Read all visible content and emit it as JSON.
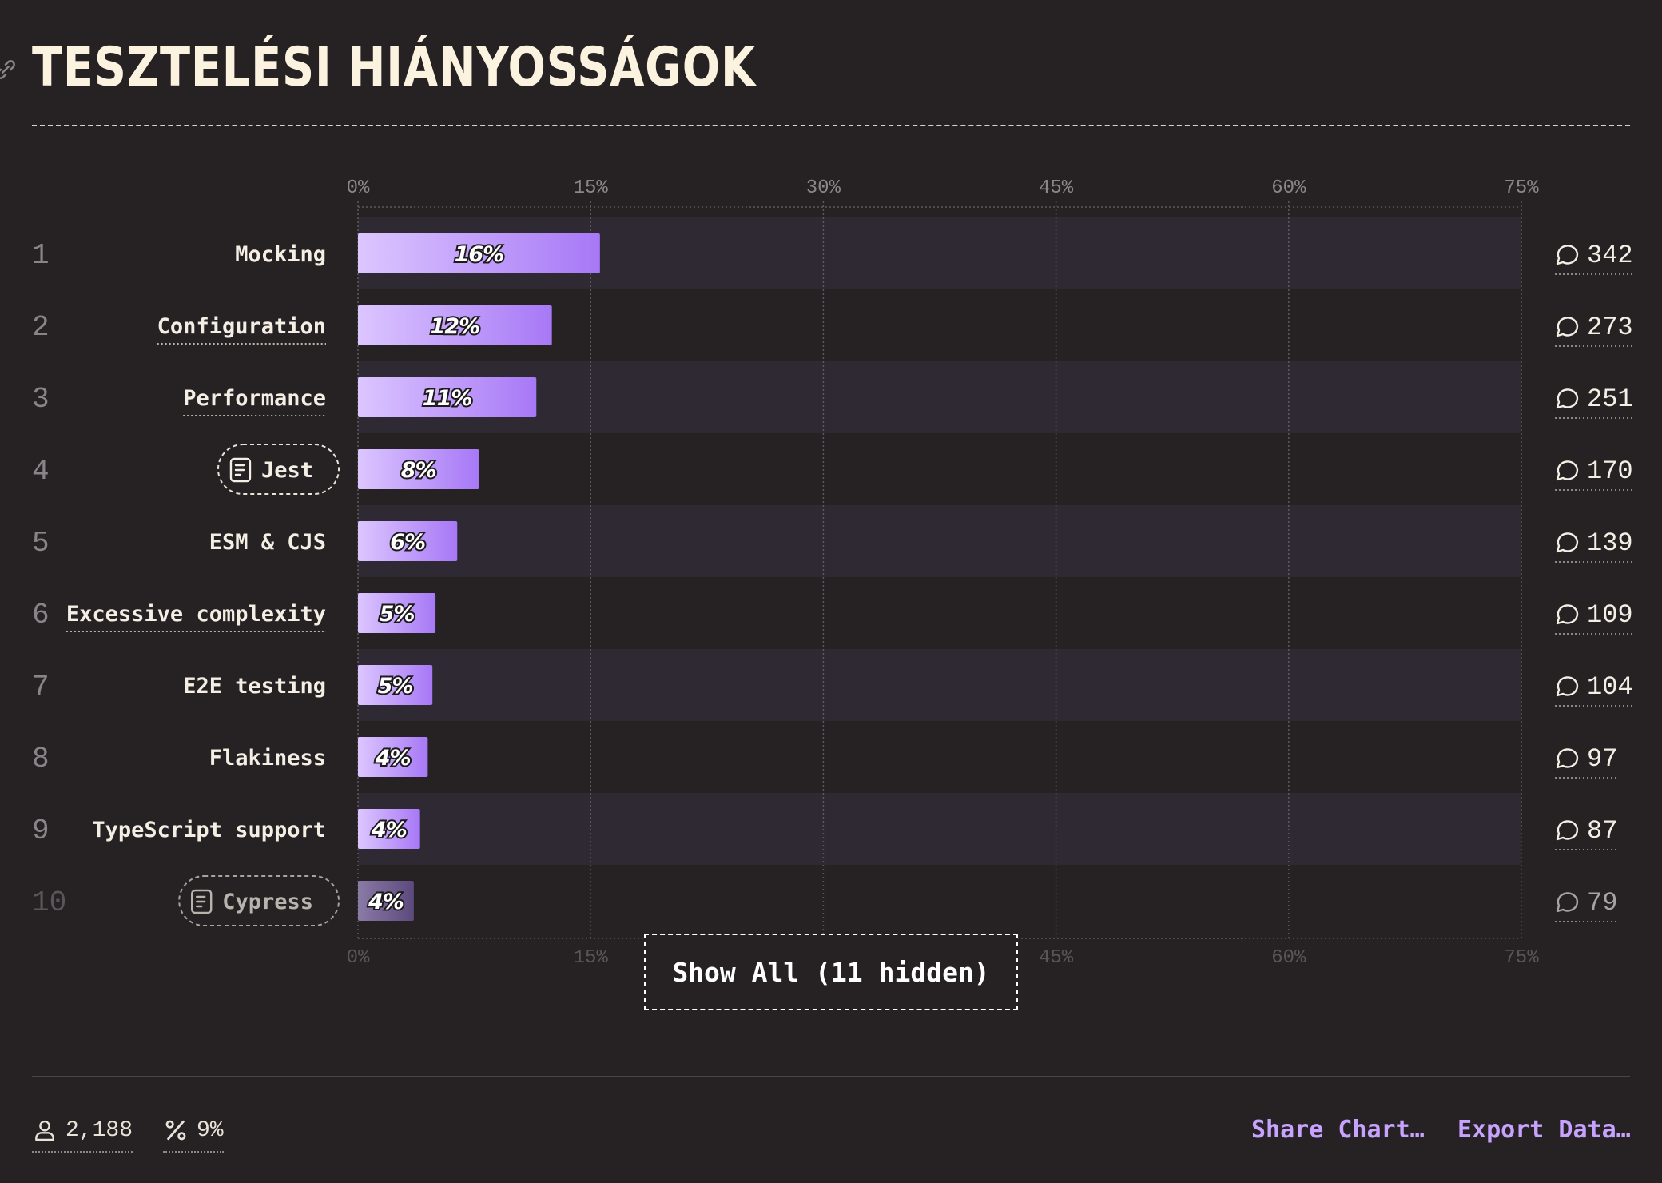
{
  "title": "TESZTELÉSI HIÁNYOSSÁGOK",
  "chart_data": {
    "type": "bar",
    "orientation": "horizontal",
    "x_ticks": [
      "0%",
      "15%",
      "30%",
      "45%",
      "60%",
      "75%"
    ],
    "xlim": [
      0,
      75
    ],
    "grid": true,
    "rows": [
      {
        "rank": "1",
        "label": "Mocking",
        "value": 15.6,
        "value_label": "16%",
        "count": "342",
        "icon": null,
        "dim": false
      },
      {
        "rank": "2",
        "label": "Configuration",
        "value": 12.5,
        "value_label": "12%",
        "count": "273",
        "icon": null,
        "dim": false
      },
      {
        "rank": "3",
        "label": "Performance",
        "value": 11.5,
        "value_label": "11%",
        "count": "251",
        "icon": null,
        "dim": false
      },
      {
        "rank": "4",
        "label": "Jest",
        "value": 7.8,
        "value_label": "8%",
        "count": "170",
        "icon": "scroll-icon",
        "dim": false
      },
      {
        "rank": "5",
        "label": "ESM & CJS",
        "value": 6.4,
        "value_label": "6%",
        "count": "139",
        "icon": null,
        "dim": false
      },
      {
        "rank": "6",
        "label": "Excessive complexity",
        "value": 5.0,
        "value_label": "5%",
        "count": "109",
        "icon": null,
        "dim": false
      },
      {
        "rank": "7",
        "label": "E2E testing",
        "value": 4.8,
        "value_label": "5%",
        "count": "104",
        "icon": null,
        "dim": false
      },
      {
        "rank": "8",
        "label": "Flakiness",
        "value": 4.5,
        "value_label": "4%",
        "count": "97",
        "icon": null,
        "dim": false
      },
      {
        "rank": "9",
        "label": "TypeScript support",
        "value": 4.0,
        "value_label": "4%",
        "count": "87",
        "icon": null,
        "dim": false
      },
      {
        "rank": "10",
        "label": "Cypress",
        "value": 3.6,
        "value_label": "4%",
        "count": "79",
        "icon": "scroll-icon",
        "dim": true
      }
    ],
    "underlined_labels": [
      "Configuration",
      "Performance",
      "Excessive complexity"
    ],
    "colors": {
      "bar_start": "#dcc6ff",
      "bar_end": "#a778f6",
      "bar_dim_start": "#8a7aa6",
      "bar_dim_end": "#5c4a7e",
      "stripe": "#2e2933",
      "accent": "#c7a3ff"
    }
  },
  "show_all_label": "Show All (11 hidden)",
  "footer": {
    "respondents": "2,188",
    "percent": "9%",
    "share_label": "Share Chart…",
    "export_label": "Export Data…"
  },
  "icons": {
    "link": "link-icon",
    "comment": "comment-icon",
    "user": "user-icon",
    "percent": "percent-icon"
  }
}
